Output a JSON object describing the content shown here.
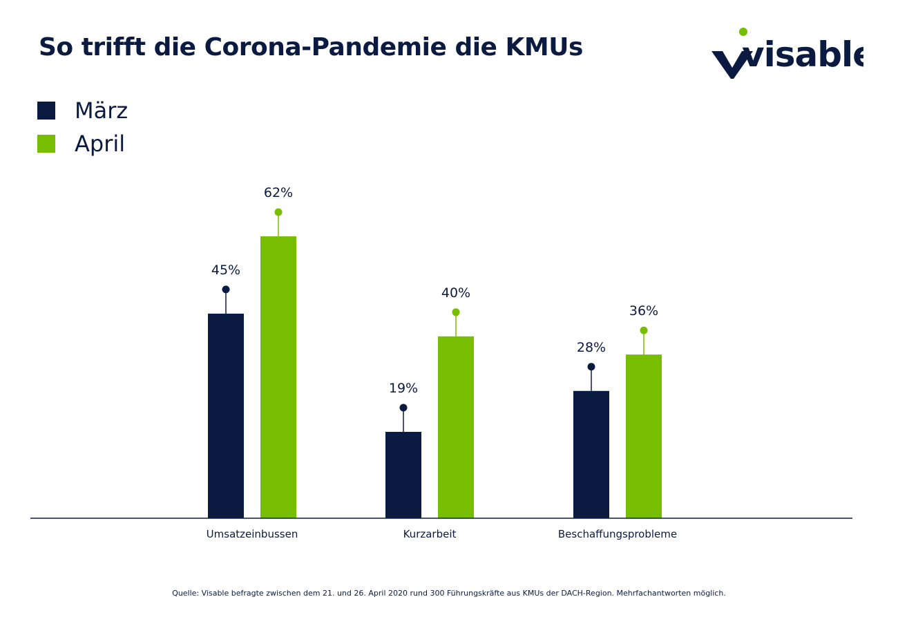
{
  "title": "So trifft die Corona-Pandemie die KMUs",
  "logo": {
    "text": "visable",
    "icon": "visable-logo-icon",
    "dot_color": "#78be00"
  },
  "colors": {
    "navy": "#0b1a40",
    "green": "#78be00"
  },
  "chart_data": {
    "type": "bar",
    "categories": [
      "Umsatzeinbussen",
      "Kurzarbeit",
      "Beschaffungsprobleme"
    ],
    "series": [
      {
        "name": "März",
        "values": [
          45,
          19,
          28
        ],
        "labels": [
          "45%",
          "19%",
          "28%"
        ],
        "color": "#0b1a40"
      },
      {
        "name": "April",
        "values": [
          62,
          40,
          36
        ],
        "labels": [
          "62%",
          "40%",
          "36%"
        ],
        "color": "#78be00"
      }
    ],
    "ylim": [
      0,
      100
    ],
    "legend_placement": "top-left",
    "grid": false
  },
  "source": "Quelle: Visable befragte zwischen dem 21. und 26. April 2020 rund 300 Führungskräfte aus KMUs der DACH-Region. Mehrfachantworten möglich."
}
